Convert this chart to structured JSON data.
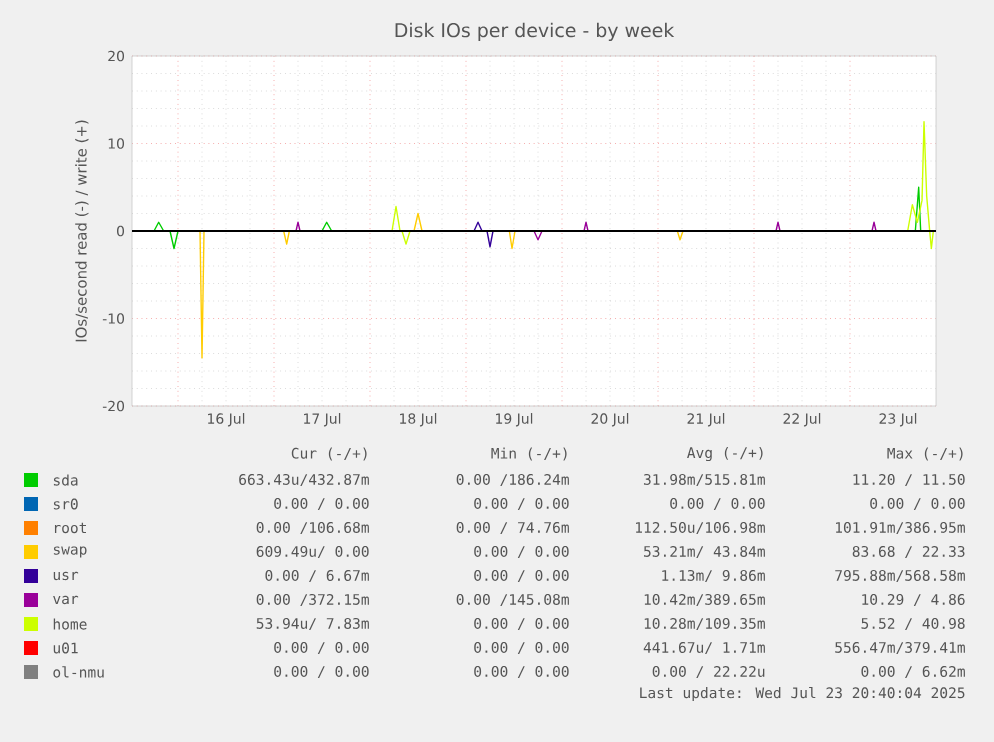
{
  "chart_data": {
    "type": "line",
    "title": "Disk IOs per device - by week",
    "ylabel": "IOs/second read (-) / write (+)",
    "xlim": [
      "2025-07-15T12:30",
      "2025-07-23T21:30"
    ],
    "ylim": [
      -20,
      20
    ],
    "xticks": [
      {
        "value": "2025-07-16",
        "label": null
      },
      {
        "value": "2025-07-17",
        "label": null
      },
      {
        "value": "2025-07-18",
        "label": null
      },
      {
        "value": "2025-07-19",
        "label": null
      },
      {
        "value": "2025-07-20",
        "label": null
      },
      {
        "value": "2025-07-21",
        "label": null
      },
      {
        "value": "2025-07-22",
        "label": null
      },
      {
        "value": "2025-07-23",
        "label": null
      },
      {
        "value": "2025-07-16T12:00",
        "label": "16 Jul"
      },
      {
        "value": "2025-07-17T12:00",
        "label": "17 Jul"
      },
      {
        "value": "2025-07-18T12:00",
        "label": "18 Jul"
      },
      {
        "value": "2025-07-19T12:00",
        "label": "19 Jul"
      },
      {
        "value": "2025-07-20T12:00",
        "label": "20 Jul"
      },
      {
        "value": "2025-07-21T12:00",
        "label": "21 Jul"
      },
      {
        "value": "2025-07-22T12:00",
        "label": "22 Jul"
      },
      {
        "value": "2025-07-23T12:00",
        "label": "23 Jul"
      }
    ],
    "yticks": [
      -20,
      -10,
      0,
      10,
      20
    ],
    "grid": true,
    "legend": "bottom",
    "marker": "none",
    "line_style": "solid",
    "ref_lines": [
      {
        "axis": "y",
        "value": 0,
        "color": "#000000"
      }
    ],
    "series": [
      {
        "name": "sda",
        "color": "#00cc00",
        "x": [
          "2025-07-15T18:00",
          "2025-07-15T19:10",
          "2025-07-15T20:25",
          "2025-07-15T22:00",
          "2025-07-15T23:00",
          "2025-07-16T00:00",
          "2025-07-16T06:00",
          "2025-07-17T12:00",
          "2025-07-17T13:10",
          "2025-07-17T14:25",
          "2025-07-18T00:00",
          "2025-07-23T16:20",
          "2025-07-23T17:10",
          "2025-07-23T17:40"
        ],
        "values": [
          0,
          1,
          0,
          0,
          -2,
          0,
          null,
          0,
          1,
          0,
          null,
          0,
          5,
          0
        ]
      },
      {
        "name": "sr0",
        "color": "#0066b3"
      },
      {
        "name": "root",
        "color": "#ff8000"
      },
      {
        "name": "swap",
        "color": "#ffcc00",
        "x": [
          "2025-07-16T05:30",
          "2025-07-16T06:00",
          "2025-07-16T06:30",
          "2025-07-17T00:00",
          "2025-07-17T02:25",
          "2025-07-17T03:10",
          "2025-07-17T03:50",
          "2025-07-18T00:00",
          "2025-07-18T11:00",
          "2025-07-18T12:00",
          "2025-07-18T13:00",
          "2025-07-19T00:00",
          "2025-07-19T10:50",
          "2025-07-19T11:30",
          "2025-07-19T12:15",
          "2025-07-20T00:00",
          "2025-07-21T04:50",
          "2025-07-21T05:30",
          "2025-07-21T06:15"
        ],
        "values": [
          0,
          -14.5,
          0,
          null,
          0,
          -1.5,
          0,
          null,
          0,
          2,
          0,
          null,
          0,
          -2,
          0,
          null,
          0,
          -1,
          0
        ]
      },
      {
        "name": "usr",
        "color": "#330099",
        "x": [
          "2025-07-19T02:00",
          "2025-07-19T03:00",
          "2025-07-19T04:00",
          "2025-07-19T05:15",
          "2025-07-19T06:00",
          "2025-07-19T06:45"
        ],
        "values": [
          0,
          1,
          0,
          0,
          -1.8,
          0
        ]
      },
      {
        "name": "var",
        "color": "#990099",
        "x": [
          "2025-07-17T05:30",
          "2025-07-17T06:00",
          "2025-07-17T06:30",
          "2025-07-18T00:00",
          "2025-07-19T17:00",
          "2025-07-19T18:00",
          "2025-07-19T19:00",
          "2025-07-20T00:00",
          "2025-07-20T05:30",
          "2025-07-20T06:00",
          "2025-07-20T06:30",
          "2025-07-21T00:00",
          "2025-07-22T05:30",
          "2025-07-22T06:00",
          "2025-07-22T06:30",
          "2025-07-23T00:00",
          "2025-07-23T05:30",
          "2025-07-23T06:00",
          "2025-07-23T06:30"
        ],
        "values": [
          0,
          1,
          0,
          null,
          0,
          -1,
          0,
          null,
          0,
          1,
          0,
          null,
          0,
          1,
          0,
          null,
          0,
          1,
          0
        ]
      },
      {
        "name": "home",
        "color": "#ccff00",
        "x": [
          "2025-07-18T05:30",
          "2025-07-18T06:30",
          "2025-07-18T07:30",
          "2025-07-18T08:00",
          "2025-07-18T09:00",
          "2025-07-18T10:00",
          "2025-07-19T00:00",
          "2025-07-23T14:25",
          "2025-07-23T15:35",
          "2025-07-23T16:50",
          "2025-07-23T18:00",
          "2025-07-23T18:30",
          "2025-07-23T19:10",
          "2025-07-23T19:55",
          "2025-07-23T20:20",
          "2025-07-23T20:50"
        ],
        "values": [
          0,
          2.8,
          0,
          0,
          -1.5,
          0,
          null,
          0,
          3,
          1,
          3.5,
          12.5,
          4,
          0,
          -2,
          0
        ]
      },
      {
        "name": "u01",
        "color": "#ff0000"
      },
      {
        "name": "ol-nmu",
        "color": "#808080"
      }
    ],
    "annotations": [
      "Cur (-/+)",
      "Min (-/+)",
      "Avg (-/+)",
      "Max (-/+)",
      "663.43u/432.87m",
      "0.00 /186.24m",
      "31.98m/515.81m",
      "11.20 / 11.50",
      "0.00 / 0.00",
      "0.00 / 0.00",
      "0.00 / 0.00",
      "0.00 / 0.00",
      "0.00 /106.68m",
      "0.00 / 74.76m",
      "112.50u/106.98m",
      "101.91m/386.95m",
      "609.49u/ 0.00",
      "0.00 / 0.00",
      "53.21m/ 43.84m",
      "83.68 / 22.33",
      "0.00 / 6.67m",
      "0.00 / 0.00",
      "1.13m/ 9.86m",
      "795.88m/568.58m",
      "0.00 /372.15m",
      "0.00 /145.08m",
      "10.42m/389.65m",
      "10.29 / 4.86",
      "53.94u/ 7.83m",
      "0.00 / 0.00",
      "10.28m/109.35m",
      "5.52 / 40.98",
      "0.00 / 0.00",
      "0.00 / 0.00",
      "441.67u/ 1.71m",
      "556.47m/379.41m",
      "0.00 / 0.00",
      "0.00 / 0.00",
      "0.00 / 22.22u",
      "0.00 / 6.62m",
      "Last update: Wed Jul 23 20:40:04 2025"
    ]
  }
}
